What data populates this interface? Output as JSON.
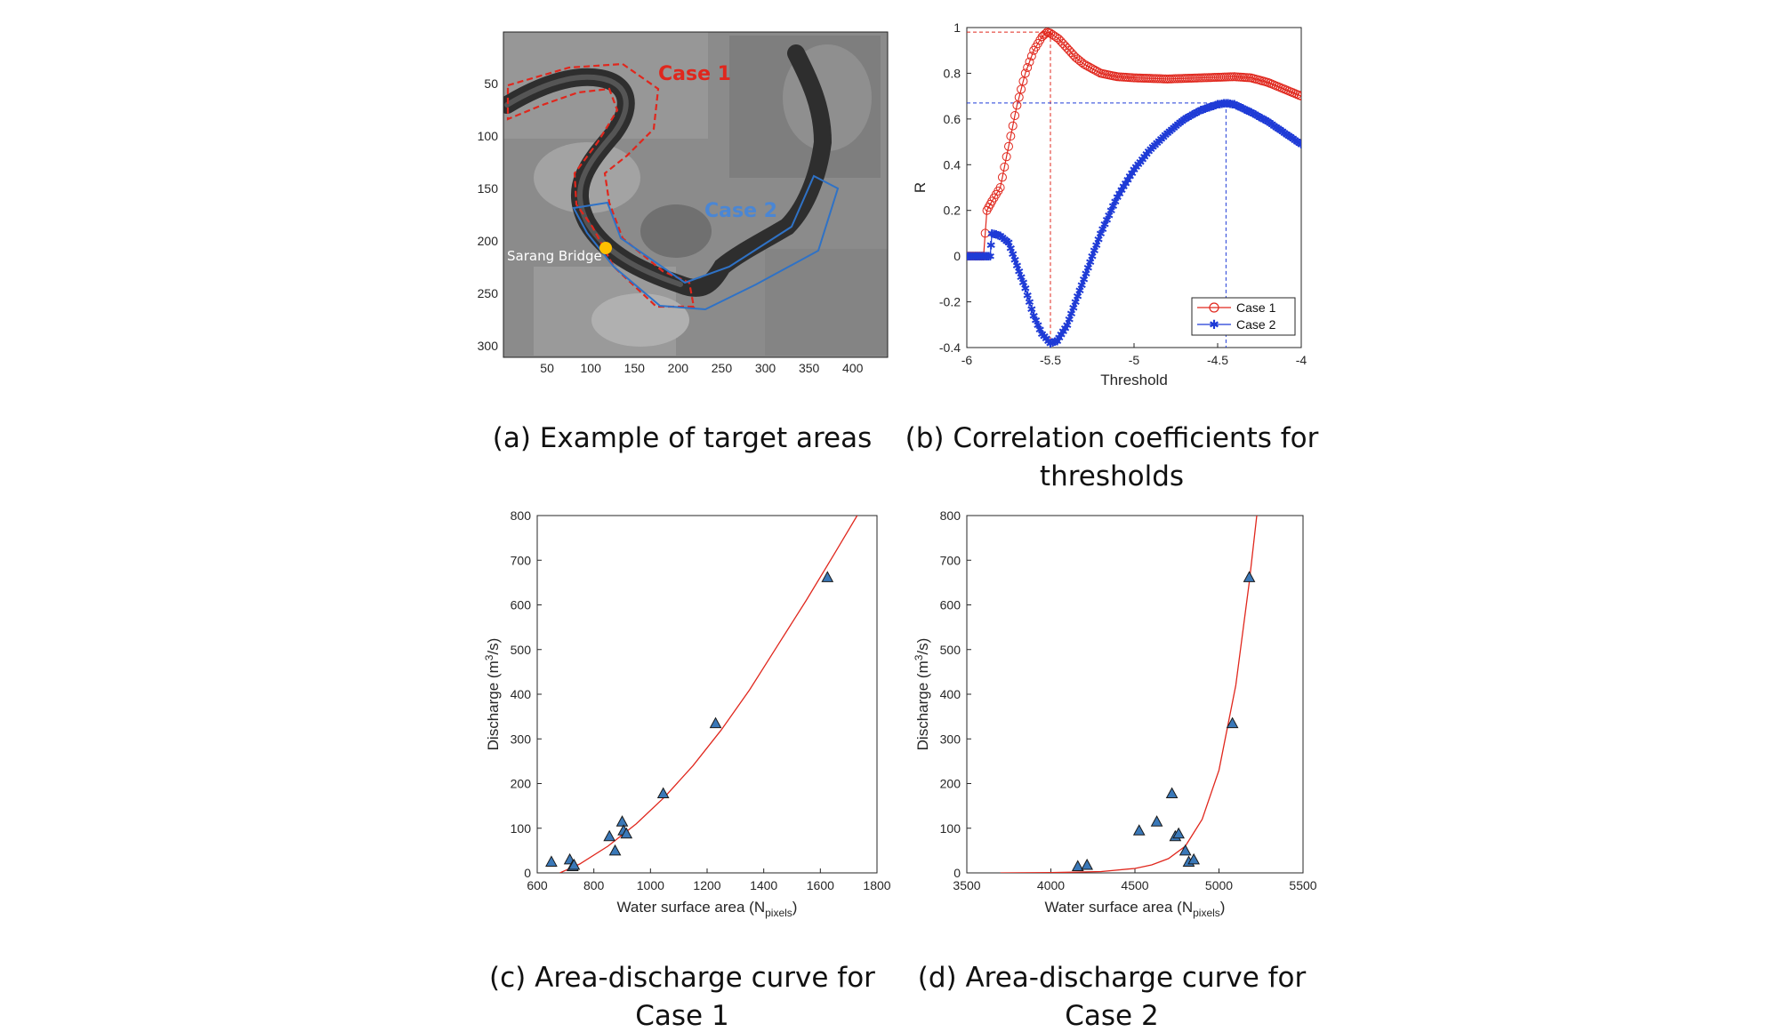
{
  "captions": {
    "a": "(a) Example of target areas",
    "b_line1": "(b) Correlation coefficients for",
    "b_line2": "thresholds",
    "c_line1": "(c) Area-discharge curve for",
    "c_line2": "Case 1",
    "d_line1": "(d) Area-discharge curve for",
    "d_line2": "Case 2"
  },
  "colors": {
    "red": "#e0271d",
    "blue": "#1f3bd6",
    "outline_blue": "#2f72c6",
    "triangle_fill": "#3a78b8",
    "marker_yellow": "#ffc000"
  },
  "chart_data": [
    {
      "id": "a",
      "type": "image",
      "xticks": [
        "50",
        "100",
        "150",
        "200",
        "250",
        "300",
        "350",
        "400"
      ],
      "yticks": [
        "50",
        "100",
        "150",
        "200",
        "250",
        "300"
      ],
      "labels": {
        "case1": "Case 1",
        "case2": "Case 2",
        "bridge": "Sarang Bridge"
      }
    },
    {
      "id": "b",
      "type": "line",
      "xlabel": "Threshold",
      "ylabel": "R",
      "xlim": [
        -6,
        -4
      ],
      "ylim": [
        -0.4,
        1
      ],
      "xticks": [
        "-6",
        "-5.5",
        "-5",
        "-4.5",
        "-4"
      ],
      "yticks": [
        "-0.4",
        "-0.2",
        "0",
        "0.2",
        "0.4",
        "0.6",
        "0.8",
        "1"
      ],
      "legend_position": "bottom-right",
      "series": [
        {
          "name": "Case 1",
          "marker": "circle",
          "color": "#e0271d",
          "points": [
            [
              -6.0,
              0.0
            ],
            [
              -5.9,
              0.0
            ],
            [
              -5.88,
              0.2
            ],
            [
              -5.85,
              0.24
            ],
            [
              -5.8,
              0.3
            ],
            [
              -5.75,
              0.48
            ],
            [
              -5.7,
              0.66
            ],
            [
              -5.65,
              0.8
            ],
            [
              -5.6,
              0.9
            ],
            [
              -5.55,
              0.96
            ],
            [
              -5.52,
              0.98
            ],
            [
              -5.5,
              0.975
            ],
            [
              -5.45,
              0.95
            ],
            [
              -5.4,
              0.91
            ],
            [
              -5.35,
              0.87
            ],
            [
              -5.3,
              0.84
            ],
            [
              -5.2,
              0.8
            ],
            [
              -5.1,
              0.785
            ],
            [
              -5.0,
              0.78
            ],
            [
              -4.8,
              0.775
            ],
            [
              -4.6,
              0.78
            ],
            [
              -4.4,
              0.785
            ],
            [
              -4.3,
              0.78
            ],
            [
              -4.2,
              0.76
            ],
            [
              -4.1,
              0.73
            ],
            [
              -4.0,
              0.7
            ]
          ]
        },
        {
          "name": "Case 2",
          "marker": "asterisk",
          "color": "#1f3bd6",
          "points": [
            [
              -6.0,
              0.0
            ],
            [
              -5.86,
              0.0
            ],
            [
              -5.85,
              0.1
            ],
            [
              -5.8,
              0.09
            ],
            [
              -5.75,
              0.06
            ],
            [
              -5.7,
              -0.04
            ],
            [
              -5.65,
              -0.14
            ],
            [
              -5.6,
              -0.26
            ],
            [
              -5.55,
              -0.34
            ],
            [
              -5.5,
              -0.38
            ],
            [
              -5.46,
              -0.37
            ],
            [
              -5.4,
              -0.3
            ],
            [
              -5.3,
              -0.1
            ],
            [
              -5.2,
              0.1
            ],
            [
              -5.1,
              0.26
            ],
            [
              -5.0,
              0.38
            ],
            [
              -4.9,
              0.47
            ],
            [
              -4.8,
              0.54
            ],
            [
              -4.7,
              0.6
            ],
            [
              -4.6,
              0.64
            ],
            [
              -4.5,
              0.665
            ],
            [
              -4.45,
              0.67
            ],
            [
              -4.4,
              0.665
            ],
            [
              -4.3,
              0.63
            ],
            [
              -4.2,
              0.59
            ],
            [
              -4.1,
              0.54
            ],
            [
              -4.0,
              0.49
            ]
          ]
        }
      ],
      "guides": [
        {
          "series": "Case 1",
          "x": -5.5,
          "y": 0.98
        },
        {
          "series": "Case 2",
          "x": -4.45,
          "y": 0.67
        }
      ]
    },
    {
      "id": "c",
      "type": "scatter",
      "xlabel_main": "Water surface area (N",
      "xlabel_sub": "pixels",
      "xlabel_end": ")",
      "ylabel_main": "Discharge (m",
      "ylabel_sup": "3",
      "ylabel_end": "/s)",
      "xlim": [
        600,
        1800
      ],
      "ylim": [
        0,
        800
      ],
      "xticks": [
        "600",
        "800",
        "1000",
        "1200",
        "1400",
        "1600",
        "1800"
      ],
      "yticks": [
        "0",
        "100",
        "200",
        "300",
        "400",
        "500",
        "600",
        "700",
        "800"
      ],
      "points": [
        [
          650,
          25
        ],
        [
          715,
          30
        ],
        [
          725,
          15
        ],
        [
          730,
          18
        ],
        [
          855,
          82
        ],
        [
          875,
          50
        ],
        [
          900,
          115
        ],
        [
          905,
          95
        ],
        [
          915,
          88
        ],
        [
          1045,
          178
        ],
        [
          1230,
          335
        ],
        [
          1625,
          662
        ]
      ],
      "curve": [
        [
          680,
          0
        ],
        [
          750,
          20
        ],
        [
          850,
          60
        ],
        [
          950,
          110
        ],
        [
          1050,
          170
        ],
        [
          1150,
          240
        ],
        [
          1250,
          320
        ],
        [
          1350,
          410
        ],
        [
          1450,
          510
        ],
        [
          1550,
          610
        ],
        [
          1650,
          715
        ],
        [
          1730,
          800
        ]
      ]
    },
    {
      "id": "d",
      "type": "scatter",
      "xlabel_main": "Water surface area (N",
      "xlabel_sub": "pixels",
      "xlabel_end": ")",
      "ylabel_main": "Discharge (m",
      "ylabel_sup": "3",
      "ylabel_end": "/s)",
      "xlim": [
        3500,
        5500
      ],
      "ylim": [
        0,
        800
      ],
      "xticks": [
        "3500",
        "4000",
        "4500",
        "5000",
        "5500"
      ],
      "yticks": [
        "0",
        "100",
        "200",
        "300",
        "400",
        "500",
        "600",
        "700",
        "800"
      ],
      "points": [
        [
          4160,
          15
        ],
        [
          4215,
          18
        ],
        [
          4525,
          95
        ],
        [
          4630,
          115
        ],
        [
          4720,
          178
        ],
        [
          4740,
          82
        ],
        [
          4760,
          88
        ],
        [
          4800,
          50
        ],
        [
          4820,
          25
        ],
        [
          4850,
          30
        ],
        [
          5080,
          335
        ],
        [
          5180,
          662
        ]
      ],
      "curve": [
        [
          3700,
          0
        ],
        [
          4000,
          0.5
        ],
        [
          4300,
          3
        ],
        [
          4500,
          10
        ],
        [
          4600,
          18
        ],
        [
          4700,
          32
        ],
        [
          4800,
          60
        ],
        [
          4900,
          120
        ],
        [
          5000,
          230
        ],
        [
          5100,
          420
        ],
        [
          5180,
          650
        ],
        [
          5225,
          800
        ]
      ]
    }
  ]
}
